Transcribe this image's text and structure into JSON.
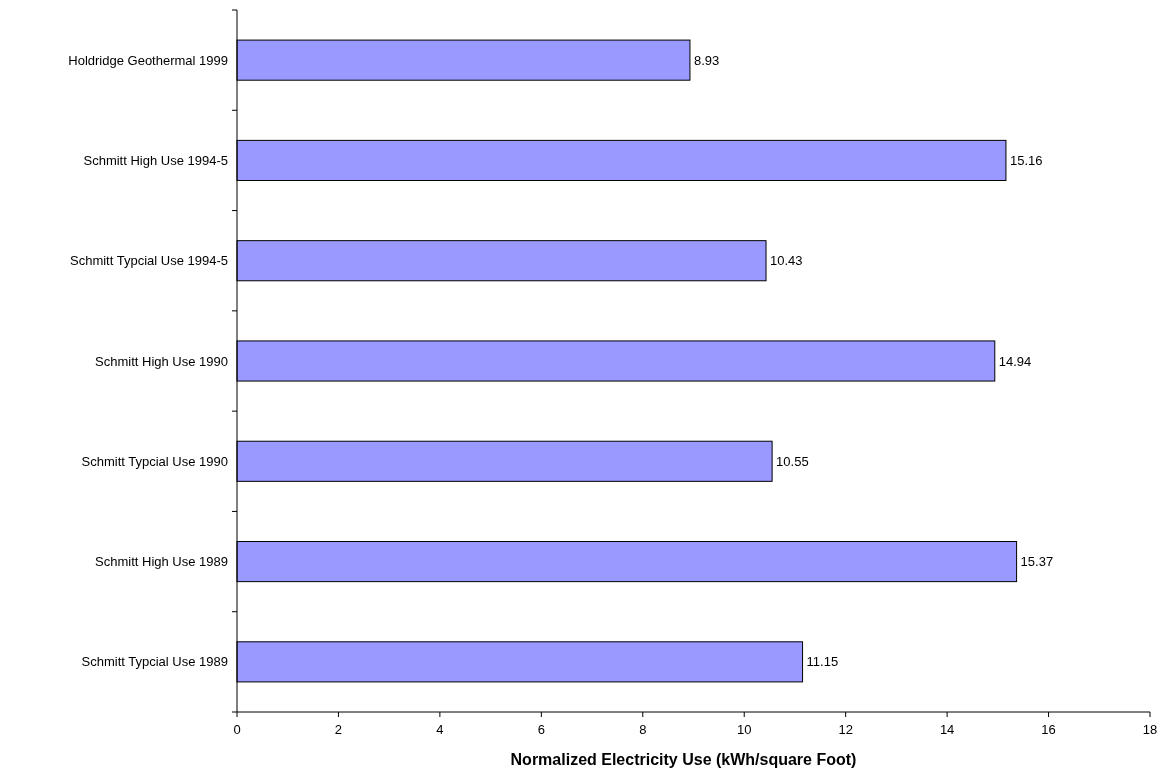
{
  "chart_data": {
    "type": "bar",
    "orientation": "horizontal",
    "xlabel": "Normalized Electricity Use (kWh/square Foot)",
    "categories": [
      "Holdridge Geothermal 1999",
      "Schmitt High Use 1994-5",
      "Schmitt Typcial Use 1994-5",
      "Schmitt High Use 1990",
      "Schmitt Typcial Use 1990",
      "Schmitt High Use 1989",
      "Schmitt Typcial Use 1989"
    ],
    "values": [
      8.93,
      15.16,
      10.43,
      14.94,
      10.55,
      15.37,
      11.15
    ],
    "color": "#9999ff",
    "xlim": [
      0,
      18
    ],
    "xticks": [
      0,
      2,
      4,
      6,
      8,
      10,
      12,
      14,
      16,
      18
    ],
    "data_labels": true,
    "grid": false
  }
}
